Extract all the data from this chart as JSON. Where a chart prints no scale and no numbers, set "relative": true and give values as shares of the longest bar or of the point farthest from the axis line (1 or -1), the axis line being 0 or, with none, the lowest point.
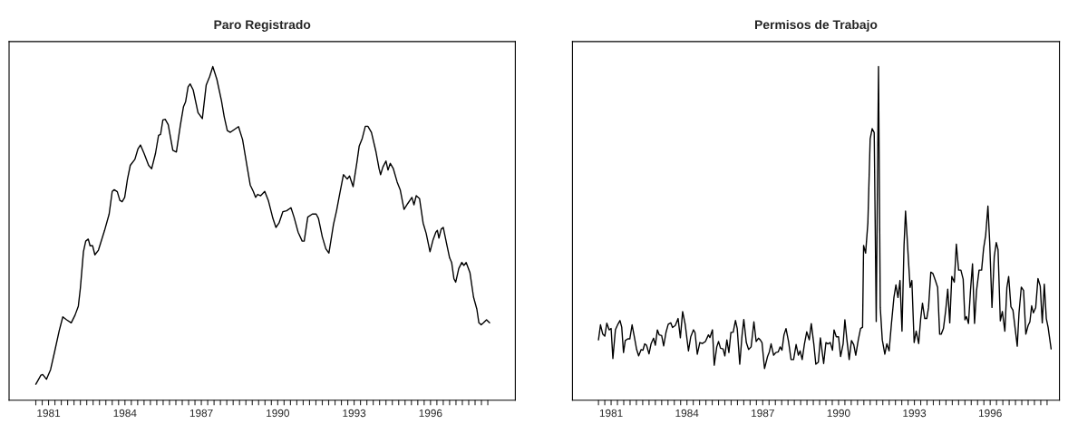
{
  "chart_data": [
    {
      "type": "line",
      "title": "Paro Registrado",
      "relative": true,
      "xlim": [
        1979.95,
        1999.83
      ],
      "xticks": [
        {
          "value": 1981.0,
          "label": null
        },
        {
          "value": 1981.25,
          "label": null
        },
        {
          "value": 1981.5,
          "label": "1981"
        },
        {
          "value": 1981.75,
          "label": null
        },
        {
          "value": 1982.0,
          "label": null
        },
        {
          "value": 1982.25,
          "label": null
        },
        {
          "value": 1982.5,
          "label": null
        },
        {
          "value": 1982.75,
          "label": null
        },
        {
          "value": 1983.0,
          "label": null
        },
        {
          "value": 1983.25,
          "label": null
        },
        {
          "value": 1983.5,
          "label": null
        },
        {
          "value": 1983.75,
          "label": null
        },
        {
          "value": 1984.0,
          "label": null
        },
        {
          "value": 1984.25,
          "label": null
        },
        {
          "value": 1984.5,
          "label": "1984"
        },
        {
          "value": 1984.75,
          "label": null
        },
        {
          "value": 1985.0,
          "label": null
        },
        {
          "value": 1985.25,
          "label": null
        },
        {
          "value": 1985.5,
          "label": null
        },
        {
          "value": 1985.75,
          "label": null
        },
        {
          "value": 1986.0,
          "label": null
        },
        {
          "value": 1986.25,
          "label": null
        },
        {
          "value": 1986.5,
          "label": null
        },
        {
          "value": 1986.75,
          "label": null
        },
        {
          "value": 1987.0,
          "label": null
        },
        {
          "value": 1987.25,
          "label": null
        },
        {
          "value": 1987.5,
          "label": "1987"
        },
        {
          "value": 1987.75,
          "label": null
        },
        {
          "value": 1988.0,
          "label": null
        },
        {
          "value": 1988.25,
          "label": null
        },
        {
          "value": 1988.5,
          "label": null
        },
        {
          "value": 1988.75,
          "label": null
        },
        {
          "value": 1989.0,
          "label": null
        },
        {
          "value": 1989.25,
          "label": null
        },
        {
          "value": 1989.5,
          "label": null
        },
        {
          "value": 1989.75,
          "label": null
        },
        {
          "value": 1990.0,
          "label": null
        },
        {
          "value": 1990.25,
          "label": null
        },
        {
          "value": 1990.5,
          "label": "1990"
        },
        {
          "value": 1990.75,
          "label": null
        },
        {
          "value": 1991.0,
          "label": null
        },
        {
          "value": 1991.25,
          "label": null
        },
        {
          "value": 1991.5,
          "label": null
        },
        {
          "value": 1991.75,
          "label": null
        },
        {
          "value": 1992.0,
          "label": null
        },
        {
          "value": 1992.25,
          "label": null
        },
        {
          "value": 1992.5,
          "label": null
        },
        {
          "value": 1992.75,
          "label": null
        },
        {
          "value": 1993.0,
          "label": null
        },
        {
          "value": 1993.25,
          "label": null
        },
        {
          "value": 1993.5,
          "label": "1993"
        },
        {
          "value": 1993.75,
          "label": null
        },
        {
          "value": 1994.0,
          "label": null
        },
        {
          "value": 1994.25,
          "label": null
        },
        {
          "value": 1994.5,
          "label": null
        },
        {
          "value": 1994.75,
          "label": null
        },
        {
          "value": 1995.0,
          "label": null
        },
        {
          "value": 1995.25,
          "label": null
        },
        {
          "value": 1995.5,
          "label": null
        },
        {
          "value": 1995.75,
          "label": null
        },
        {
          "value": 1996.0,
          "label": null
        },
        {
          "value": 1996.25,
          "label": null
        },
        {
          "value": 1996.5,
          "label": "1996"
        },
        {
          "value": 1996.75,
          "label": null
        },
        {
          "value": 1997.0,
          "label": null
        },
        {
          "value": 1997.25,
          "label": null
        },
        {
          "value": 1997.5,
          "label": null
        },
        {
          "value": 1997.75,
          "label": null
        },
        {
          "value": 1998.0,
          "label": null
        },
        {
          "value": 1998.25,
          "label": null
        },
        {
          "value": 1998.5,
          "label": null
        },
        {
          "value": 1998.75,
          "label": null
        }
      ],
      "tick_labels": "x",
      "series": [
        {
          "color": "#000000",
          "x": [
            1981.0,
            1981.2,
            1981.27,
            1981.42,
            1981.58,
            1981.74,
            1981.92,
            1982.06,
            1982.21,
            1982.39,
            1982.54,
            1982.67,
            1982.75,
            1982.87,
            1982.96,
            1983.06,
            1983.13,
            1983.23,
            1983.32,
            1983.46,
            1983.7,
            1983.88,
            1984.0,
            1984.08,
            1984.2,
            1984.3,
            1984.39,
            1984.49,
            1984.6,
            1984.71,
            1984.89,
            1985.01,
            1985.11,
            1985.25,
            1985.43,
            1985.55,
            1985.7,
            1985.82,
            1985.9,
            1985.99,
            1986.08,
            1986.2,
            1986.38,
            1986.52,
            1986.68,
            1986.8,
            1986.88,
            1986.98,
            1987.06,
            1987.18,
            1987.37,
            1987.54,
            1987.69,
            1987.83,
            1987.95,
            1988.11,
            1988.29,
            1988.4,
            1988.52,
            1988.64,
            1988.96,
            1989.12,
            1989.3,
            1989.42,
            1989.54,
            1989.63,
            1989.71,
            1989.83,
            1989.99,
            1990.13,
            1990.25,
            1990.31,
            1990.43,
            1990.55,
            1990.7,
            1990.85,
            1991.02,
            1991.14,
            1991.3,
            1991.46,
            1991.54,
            1991.68,
            1991.86,
            1992.01,
            1992.1,
            1992.25,
            1992.39,
            1992.51,
            1992.69,
            1992.81,
            1992.93,
            1993.08,
            1993.23,
            1993.32,
            1993.46,
            1993.61,
            1993.7,
            1993.82,
            1993.94,
            1994.04,
            1994.18,
            1994.36,
            1994.48,
            1994.54,
            1994.63,
            1994.75,
            1994.83,
            1994.92,
            1995.04,
            1995.19,
            1995.31,
            1995.46,
            1995.61,
            1995.77,
            1995.85,
            1995.94,
            1996.07,
            1996.21,
            1996.33,
            1996.48,
            1996.6,
            1996.71,
            1996.77,
            1996.83,
            1996.92,
            1997.0,
            1997.15,
            1997.25,
            1997.33,
            1997.42,
            1997.49,
            1997.61,
            1997.73,
            1997.81,
            1997.9,
            1998.05,
            1998.19,
            1998.32,
            1998.4,
            1998.49,
            1998.58,
            1998.7,
            1998.82
          ],
          "values": [
            0.048,
            0.075,
            0.077,
            0.063,
            0.092,
            0.146,
            0.209,
            0.25,
            0.241,
            0.232,
            0.255,
            0.282,
            0.336,
            0.445,
            0.477,
            0.483,
            0.463,
            0.463,
            0.436,
            0.45,
            0.509,
            0.558,
            0.626,
            0.631,
            0.625,
            0.599,
            0.595,
            0.608,
            0.663,
            0.704,
            0.722,
            0.753,
            0.765,
            0.74,
            0.704,
            0.694,
            0.74,
            0.794,
            0.797,
            0.84,
            0.842,
            0.826,
            0.749,
            0.744,
            0.826,
            0.88,
            0.894,
            0.939,
            0.948,
            0.93,
            0.862,
            0.844,
            0.944,
            0.971,
            1.0,
            0.962,
            0.898,
            0.849,
            0.808,
            0.803,
            0.82,
            0.781,
            0.699,
            0.645,
            0.626,
            0.608,
            0.617,
            0.613,
            0.626,
            0.599,
            0.563,
            0.545,
            0.518,
            0.531,
            0.565,
            0.568,
            0.577,
            0.549,
            0.504,
            0.477,
            0.477,
            0.549,
            0.558,
            0.558,
            0.545,
            0.49,
            0.454,
            0.441,
            0.527,
            0.568,
            0.617,
            0.676,
            0.663,
            0.672,
            0.64,
            0.713,
            0.762,
            0.785,
            0.821,
            0.821,
            0.803,
            0.744,
            0.694,
            0.676,
            0.699,
            0.717,
            0.69,
            0.71,
            0.694,
            0.654,
            0.631,
            0.572,
            0.59,
            0.608,
            0.586,
            0.613,
            0.604,
            0.531,
            0.5,
            0.445,
            0.481,
            0.504,
            0.509,
            0.486,
            0.513,
            0.518,
            0.463,
            0.427,
            0.413,
            0.364,
            0.354,
            0.395,
            0.413,
            0.404,
            0.413,
            0.382,
            0.309,
            0.273,
            0.232,
            0.226,
            0.232,
            0.241,
            0.232
          ]
        }
      ]
    },
    {
      "type": "line",
      "title": "Permisos de Trabajo",
      "relative": true,
      "xlim": [
        1979.97,
        1999.24
      ],
      "xticks": [
        {
          "value": 1981.0,
          "label": null
        },
        {
          "value": 1981.25,
          "label": null
        },
        {
          "value": 1981.5,
          "label": "1981"
        },
        {
          "value": 1981.75,
          "label": null
        },
        {
          "value": 1982.0,
          "label": null
        },
        {
          "value": 1982.25,
          "label": null
        },
        {
          "value": 1982.5,
          "label": null
        },
        {
          "value": 1982.75,
          "label": null
        },
        {
          "value": 1983.0,
          "label": null
        },
        {
          "value": 1983.25,
          "label": null
        },
        {
          "value": 1983.5,
          "label": null
        },
        {
          "value": 1983.75,
          "label": null
        },
        {
          "value": 1984.0,
          "label": null
        },
        {
          "value": 1984.25,
          "label": null
        },
        {
          "value": 1984.5,
          "label": "1984"
        },
        {
          "value": 1984.75,
          "label": null
        },
        {
          "value": 1985.0,
          "label": null
        },
        {
          "value": 1985.25,
          "label": null
        },
        {
          "value": 1985.5,
          "label": null
        },
        {
          "value": 1985.75,
          "label": null
        },
        {
          "value": 1986.0,
          "label": null
        },
        {
          "value": 1986.25,
          "label": null
        },
        {
          "value": 1986.5,
          "label": null
        },
        {
          "value": 1986.75,
          "label": null
        },
        {
          "value": 1987.0,
          "label": null
        },
        {
          "value": 1987.25,
          "label": null
        },
        {
          "value": 1987.5,
          "label": "1987"
        },
        {
          "value": 1987.75,
          "label": null
        },
        {
          "value": 1988.0,
          "label": null
        },
        {
          "value": 1988.25,
          "label": null
        },
        {
          "value": 1988.5,
          "label": null
        },
        {
          "value": 1988.75,
          "label": null
        },
        {
          "value": 1989.0,
          "label": null
        },
        {
          "value": 1989.25,
          "label": null
        },
        {
          "value": 1989.5,
          "label": null
        },
        {
          "value": 1989.75,
          "label": null
        },
        {
          "value": 1990.0,
          "label": null
        },
        {
          "value": 1990.25,
          "label": null
        },
        {
          "value": 1990.5,
          "label": "1990"
        },
        {
          "value": 1990.75,
          "label": null
        },
        {
          "value": 1991.0,
          "label": null
        },
        {
          "value": 1991.25,
          "label": null
        },
        {
          "value": 1991.5,
          "label": null
        },
        {
          "value": 1991.75,
          "label": null
        },
        {
          "value": 1992.0,
          "label": null
        },
        {
          "value": 1992.25,
          "label": null
        },
        {
          "value": 1992.5,
          "label": null
        },
        {
          "value": 1992.75,
          "label": null
        },
        {
          "value": 1993.0,
          "label": null
        },
        {
          "value": 1993.25,
          "label": null
        },
        {
          "value": 1993.5,
          "label": "1993"
        },
        {
          "value": 1993.75,
          "label": null
        },
        {
          "value": 1994.0,
          "label": null
        },
        {
          "value": 1994.25,
          "label": null
        },
        {
          "value": 1994.5,
          "label": null
        },
        {
          "value": 1994.75,
          "label": null
        },
        {
          "value": 1995.0,
          "label": null
        },
        {
          "value": 1995.25,
          "label": null
        },
        {
          "value": 1995.5,
          "label": null
        },
        {
          "value": 1995.75,
          "label": null
        },
        {
          "value": 1996.0,
          "label": null
        },
        {
          "value": 1996.25,
          "label": null
        },
        {
          "value": 1996.5,
          "label": "1996"
        },
        {
          "value": 1996.75,
          "label": null
        },
        {
          "value": 1997.0,
          "label": null
        },
        {
          "value": 1997.25,
          "label": null
        },
        {
          "value": 1997.5,
          "label": null
        },
        {
          "value": 1997.75,
          "label": null
        },
        {
          "value": 1998.0,
          "label": null
        },
        {
          "value": 1998.25,
          "label": null
        },
        {
          "value": 1998.5,
          "label": null
        },
        {
          "value": 1998.75,
          "label": null
        }
      ],
      "tick_labels": "x",
      "series": [
        {
          "color": "#000000",
          "x": [
            1981.0,
            1981.08,
            1981.17,
            1981.25,
            1981.33,
            1981.42,
            1981.5,
            1981.57,
            1981.67,
            1981.77,
            1981.85,
            1981.92,
            1981.99,
            1982.06,
            1982.16,
            1982.24,
            1982.33,
            1982.42,
            1982.51,
            1982.59,
            1982.69,
            1982.76,
            1982.83,
            1982.9,
            1983.0,
            1983.08,
            1983.18,
            1983.25,
            1983.33,
            1983.4,
            1983.5,
            1983.58,
            1983.67,
            1983.76,
            1983.86,
            1983.93,
            1984.04,
            1984.15,
            1984.24,
            1984.33,
            1984.43,
            1984.56,
            1984.65,
            1984.76,
            1984.82,
            1984.91,
            1985.01,
            1985.11,
            1985.23,
            1985.35,
            1985.41,
            1985.51,
            1985.58,
            1985.68,
            1985.75,
            1985.83,
            1985.93,
            1986.0,
            1986.08,
            1986.16,
            1986.24,
            1986.33,
            1986.42,
            1986.49,
            1986.59,
            1986.68,
            1986.75,
            1986.85,
            1986.94,
            1987.04,
            1987.15,
            1987.24,
            1987.33,
            1987.4,
            1987.47,
            1987.57,
            1987.69,
            1987.76,
            1987.83,
            1987.93,
            1988.02,
            1988.11,
            1988.19,
            1988.26,
            1988.34,
            1988.42,
            1988.52,
            1988.62,
            1988.72,
            1988.82,
            1988.91,
            1988.98,
            1989.06,
            1989.15,
            1989.24,
            1989.34,
            1989.42,
            1989.52,
            1989.6,
            1989.7,
            1989.78,
            1989.91,
            1990.0,
            1990.08,
            1990.17,
            1990.26,
            1990.32,
            1990.41,
            1990.5,
            1990.58,
            1990.68,
            1990.75,
            1990.83,
            1990.92,
            1991.01,
            1991.1,
            1991.18,
            1991.28,
            1991.37,
            1991.45,
            1991.49,
            1991.57,
            1991.66,
            1991.75,
            1991.83,
            1991.91,
            1991.99,
            1992.08,
            1992.15,
            1992.23,
            1992.33,
            1992.41,
            1992.5,
            1992.59,
            1992.69,
            1992.77,
            1992.85,
            1992.93,
            1993.01,
            1993.09,
            1993.15,
            1993.25,
            1993.33,
            1993.4,
            1993.49,
            1993.57,
            1993.67,
            1993.75,
            1993.82,
            1993.91,
            1993.99,
            1994.06,
            1994.15,
            1994.23,
            1994.33,
            1994.42,
            1994.5,
            1994.56,
            1994.65,
            1994.74,
            1994.82,
            1994.9,
            1994.98,
            1995.08,
            1995.16,
            1995.25,
            1995.34,
            1995.43,
            1995.5,
            1995.56,
            1995.64,
            1995.72,
            1995.8,
            1995.88,
            1995.96,
            1996.06,
            1996.16,
            1996.24,
            1996.32,
            1996.41,
            1996.48,
            1996.57,
            1996.66,
            1996.74,
            1996.81,
            1996.9,
            1996.98,
            1997.08,
            1997.16,
            1997.23,
            1997.32,
            1997.4,
            1997.5,
            1997.57,
            1997.64,
            1997.73,
            1997.82,
            1997.91,
            1998.0,
            1998.07,
            1998.14,
            1998.21,
            1998.3,
            1998.39,
            1998.48,
            1998.56,
            1998.64,
            1998.72,
            1998.79,
            1998.91
          ],
          "values": [
            0.181,
            0.226,
            0.198,
            0.192,
            0.231,
            0.211,
            0.215,
            0.125,
            0.211,
            0.228,
            0.239,
            0.219,
            0.143,
            0.179,
            0.184,
            0.184,
            0.226,
            0.19,
            0.152,
            0.133,
            0.152,
            0.15,
            0.169,
            0.165,
            0.139,
            0.169,
            0.186,
            0.165,
            0.211,
            0.196,
            0.194,
            0.163,
            0.203,
            0.228,
            0.232,
            0.218,
            0.224,
            0.245,
            0.187,
            0.266,
            0.228,
            0.148,
            0.19,
            0.211,
            0.203,
            0.138,
            0.173,
            0.17,
            0.176,
            0.196,
            0.188,
            0.211,
            0.105,
            0.16,
            0.176,
            0.156,
            0.154,
            0.133,
            0.181,
            0.143,
            0.203,
            0.204,
            0.239,
            0.215,
            0.108,
            0.194,
            0.242,
            0.173,
            0.152,
            0.16,
            0.235,
            0.176,
            0.186,
            0.181,
            0.173,
            0.095,
            0.131,
            0.145,
            0.169,
            0.135,
            0.143,
            0.145,
            0.16,
            0.15,
            0.196,
            0.215,
            0.176,
            0.122,
            0.122,
            0.167,
            0.135,
            0.148,
            0.122,
            0.169,
            0.205,
            0.181,
            0.23,
            0.169,
            0.108,
            0.114,
            0.187,
            0.11,
            0.173,
            0.169,
            0.173,
            0.15,
            0.211,
            0.19,
            0.19,
            0.131,
            0.169,
            0.241,
            0.181,
            0.122,
            0.179,
            0.167,
            0.135,
            0.181,
            0.215,
            0.219,
            0.464,
            0.441,
            0.532,
            0.783,
            0.814,
            0.802,
            0.236,
            1.0,
            0.278,
            0.181,
            0.138,
            0.169,
            0.148,
            0.228,
            0.308,
            0.346,
            0.308,
            0.359,
            0.207,
            0.464,
            0.567,
            0.439,
            0.338,
            0.359,
            0.173,
            0.207,
            0.17,
            0.245,
            0.291,
            0.245,
            0.245,
            0.278,
            0.384,
            0.38,
            0.359,
            0.338,
            0.198,
            0.198,
            0.215,
            0.27,
            0.333,
            0.232,
            0.371,
            0.354,
            0.468,
            0.39,
            0.39,
            0.363,
            0.241,
            0.251,
            0.23,
            0.329,
            0.409,
            0.23,
            0.329,
            0.39,
            0.39,
            0.456,
            0.494,
            0.582,
            0.473,
            0.278,
            0.43,
            0.473,
            0.451,
            0.238,
            0.266,
            0.207,
            0.338,
            0.371,
            0.28,
            0.27,
            0.207,
            0.162,
            0.262,
            0.339,
            0.329,
            0.198,
            0.224,
            0.235,
            0.283,
            0.262,
            0.278,
            0.365,
            0.342,
            0.232,
            0.348,
            0.245,
            0.219,
            0.154
          ]
        }
      ]
    }
  ]
}
